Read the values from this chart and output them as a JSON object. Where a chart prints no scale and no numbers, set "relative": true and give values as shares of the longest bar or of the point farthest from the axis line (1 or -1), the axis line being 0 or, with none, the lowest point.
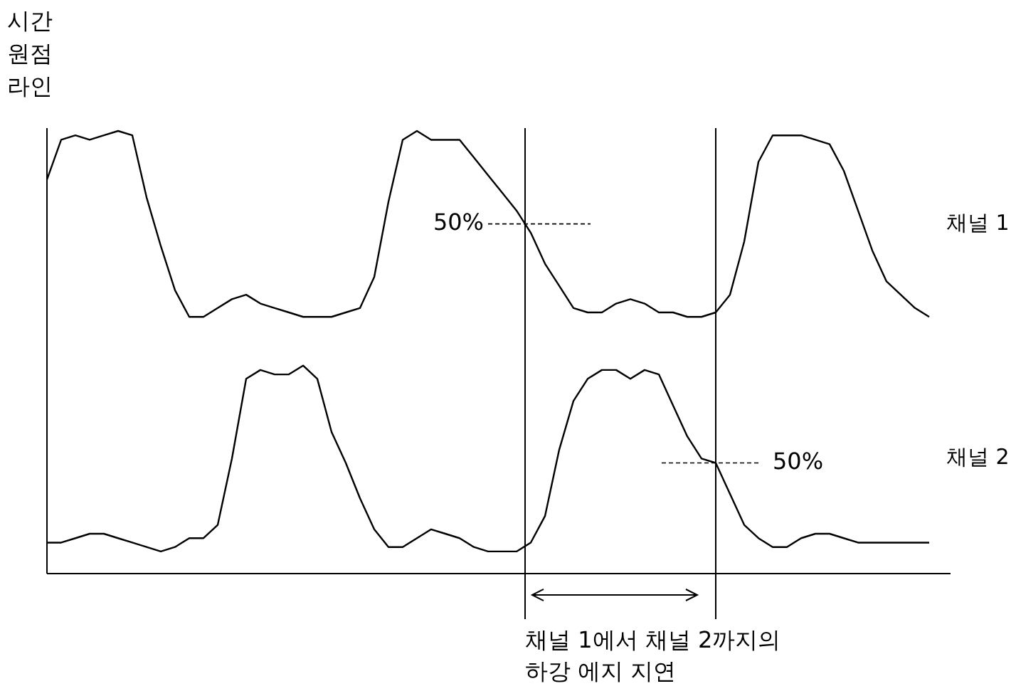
{
  "chart_data": {
    "type": "line",
    "relative": true,
    "ylabel": "시간 원점 라인",
    "legend": false,
    "tick_labels": false,
    "categories": [
      null,
      null,
      null,
      null,
      null,
      null,
      null,
      null,
      null,
      null,
      null,
      null,
      null,
      null,
      null,
      null,
      null,
      null,
      null,
      null,
      null,
      null,
      null,
      null,
      null,
      null,
      null,
      null,
      null,
      null,
      null,
      null,
      null,
      null,
      null,
      null,
      null,
      null,
      null,
      null,
      null,
      null,
      null,
      null,
      null,
      null,
      null,
      null,
      null,
      null,
      null,
      null,
      null,
      null,
      null,
      null,
      null,
      null,
      null,
      null,
      null,
      null,
      null
    ],
    "series": [
      {
        "name": "채널 1",
        "color": "#000000",
        "values": [
          0.89,
          0.98,
          0.99,
          0.98,
          0.99,
          1,
          0.99,
          0.85,
          0.74,
          0.64,
          0.58,
          0.58,
          0.6,
          0.62,
          0.63,
          0.61,
          0.6,
          0.59,
          0.58,
          0.58,
          0.58,
          0.59,
          0.6,
          0.67,
          0.84,
          0.98,
          1,
          0.98,
          0.98,
          0.98,
          0.94,
          0.9,
          0.86,
          0.82,
          0.77,
          0.7,
          0.65,
          0.6,
          0.59,
          0.59,
          0.61,
          0.62,
          0.61,
          0.59,
          0.59,
          0.58,
          0.58,
          0.59,
          0.63,
          0.75,
          0.93,
          0.99,
          0.99,
          0.99,
          0.98,
          0.97,
          0.91,
          0.82,
          0.73,
          0.66,
          0.63,
          0.6,
          0.58
        ]
      },
      {
        "name": "채널 2",
        "color": "#000000",
        "values": [
          0.07,
          0.07,
          0.08,
          0.09,
          0.09,
          0.08,
          0.07,
          0.06,
          0.05,
          0.06,
          0.08,
          0.08,
          0.11,
          0.26,
          0.44,
          0.46,
          0.45,
          0.45,
          0.47,
          0.44,
          0.32,
          0.25,
          0.17,
          0.1,
          0.06,
          0.06,
          0.08,
          0.1,
          0.09,
          0.08,
          0.06,
          0.05,
          0.05,
          0.05,
          0.07,
          0.13,
          0.28,
          0.39,
          0.44,
          0.46,
          0.46,
          0.44,
          0.46,
          0.45,
          0.38,
          0.31,
          0.26,
          0.25,
          0.18,
          0.11,
          0.08,
          0.06,
          0.06,
          0.08,
          0.09,
          0.09,
          0.08,
          0.07,
          0.07,
          0.07,
          0.07,
          0.07,
          0.07
        ]
      }
    ],
    "annotations": [
      "50%",
      "50%",
      "채널 1에서 채널 2까지의 하강 에지 지연"
    ]
  }
}
